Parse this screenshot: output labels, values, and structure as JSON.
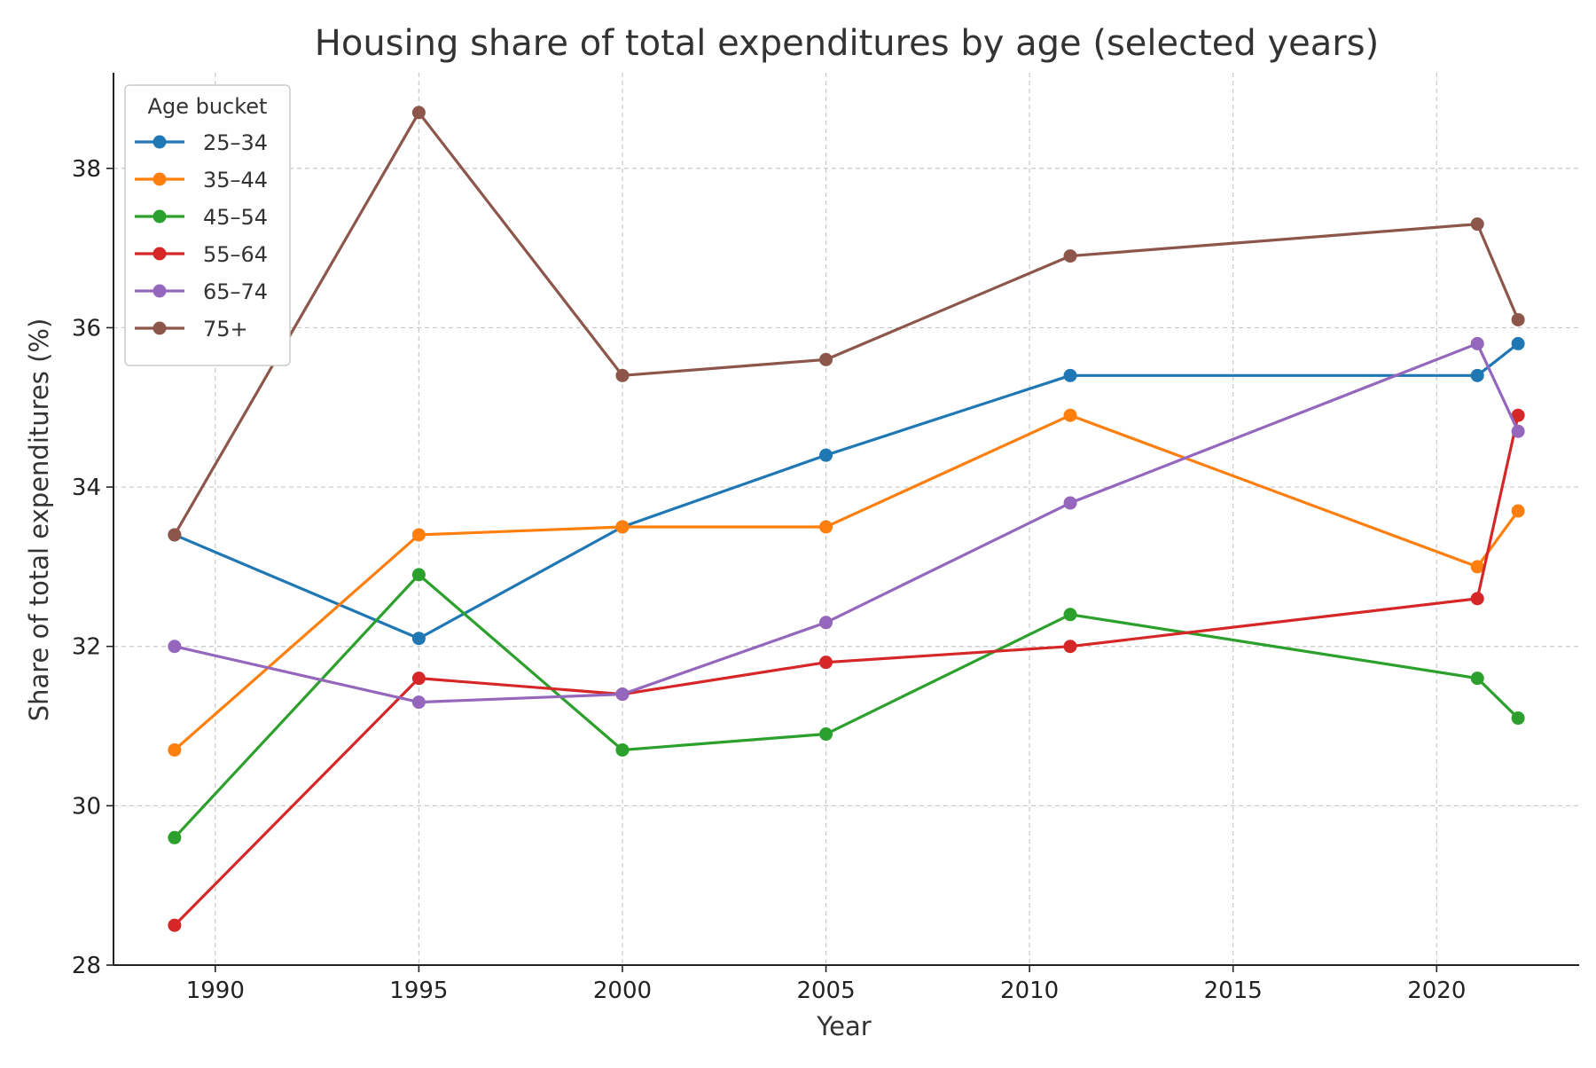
{
  "chart_data": {
    "type": "line",
    "title": "Housing share of total expenditures by age (selected years)",
    "xlabel": "Year",
    "ylabel": "Share of total expenditures (%)",
    "xlim": [
      1987.5,
      2023.5
    ],
    "ylim": [
      28,
      39.2
    ],
    "x_ticks": [
      1990,
      1995,
      2000,
      2005,
      2010,
      2015,
      2020
    ],
    "y_ticks": [
      28,
      30,
      32,
      34,
      36,
      38
    ],
    "grid": true,
    "legend": {
      "title": "Age bucket",
      "placement": "top-left"
    },
    "x": [
      1989,
      1995,
      2000,
      2005,
      2011,
      2021,
      2022
    ],
    "series": [
      {
        "name": "25–34",
        "color": "#1f77b4",
        "values": [
          33.4,
          32.1,
          33.5,
          34.4,
          35.4,
          35.4,
          35.8
        ]
      },
      {
        "name": "35–44",
        "color": "#ff7f0e",
        "values": [
          30.7,
          33.4,
          33.5,
          33.5,
          34.9,
          33.0,
          33.7
        ]
      },
      {
        "name": "45–54",
        "color": "#2ca02c",
        "values": [
          29.6,
          32.9,
          30.7,
          30.9,
          32.4,
          31.6,
          31.1
        ]
      },
      {
        "name": "55–64",
        "color": "#d62728",
        "values": [
          28.5,
          31.6,
          31.4,
          31.8,
          32.0,
          32.6,
          34.9
        ]
      },
      {
        "name": "65–74",
        "color": "#9467bd",
        "values": [
          32.0,
          31.3,
          31.4,
          32.3,
          33.8,
          35.8,
          34.7
        ]
      },
      {
        "name": "75+",
        "color": "#8c564b",
        "values": [
          33.4,
          38.7,
          35.4,
          35.6,
          36.9,
          37.3,
          36.1
        ]
      }
    ]
  }
}
